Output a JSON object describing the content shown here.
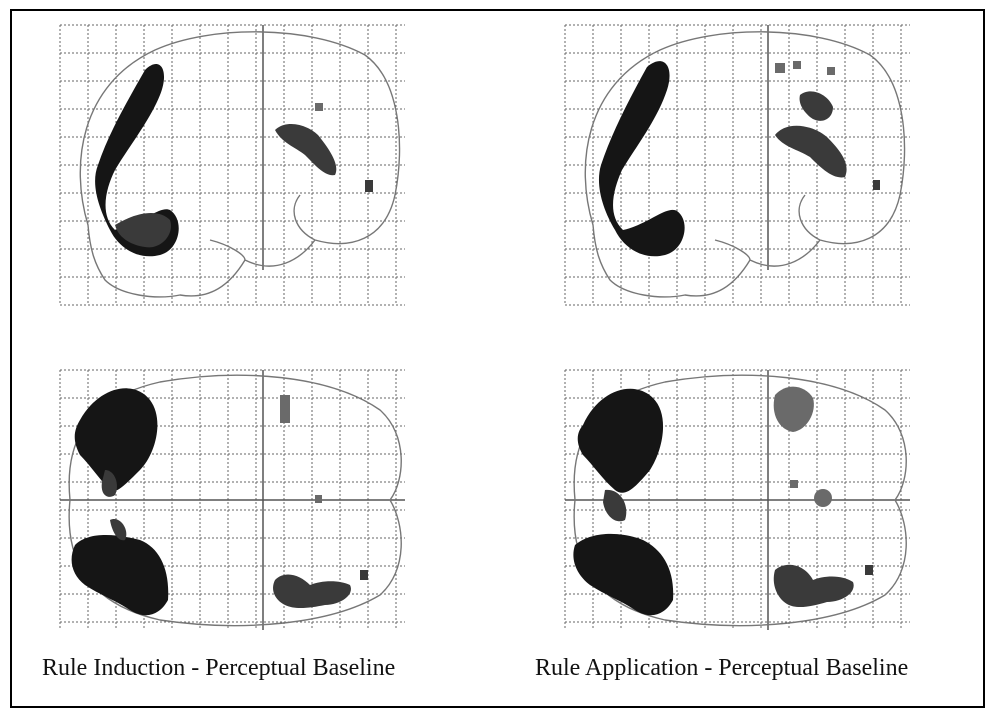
{
  "figure": {
    "panels": [
      {
        "id": "induction-sagittal",
        "view": "sagittal",
        "condition": "induction"
      },
      {
        "id": "application-sagittal",
        "view": "sagittal",
        "condition": "application"
      },
      {
        "id": "induction-axial",
        "view": "axial",
        "condition": "induction"
      },
      {
        "id": "application-axial",
        "view": "axial",
        "condition": "application"
      }
    ],
    "captions": {
      "induction": "Rule Induction - Perceptual Baseline",
      "application": "Rule Application - Perceptual Baseline"
    }
  }
}
